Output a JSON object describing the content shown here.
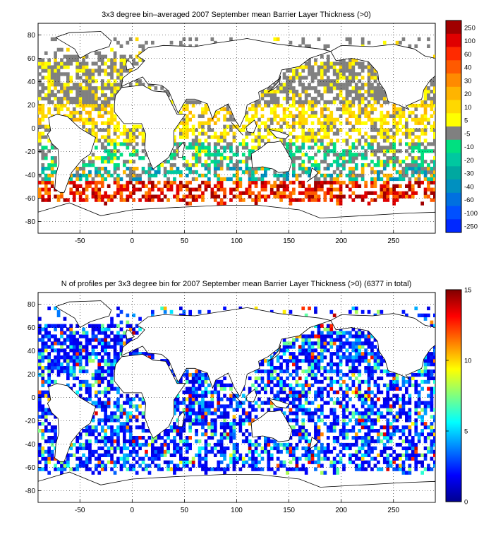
{
  "panel1": {
    "title": "3x3 degree bin–averaged 2007 September mean Barrier Layer Thickness (>0)",
    "x_ticks": [
      "-50",
      "0",
      "50",
      "100",
      "150",
      "200",
      "250"
    ],
    "y_ticks": [
      "80",
      "60",
      "40",
      "20",
      "0",
      "-20",
      "-40",
      "-60",
      "-80"
    ],
    "colorbar_labels": [
      "250",
      "100",
      "60",
      "40",
      "30",
      "20",
      "10",
      "5",
      "-5",
      "-10",
      "-20",
      "-30",
      "-40",
      "-60",
      "-100",
      "-250"
    ],
    "colorbar_colors": [
      "#a00000",
      "#e00000",
      "#ff2a00",
      "#ff5a00",
      "#ff8a00",
      "#ffb400",
      "#ffd800",
      "#ffff00",
      "#808080",
      "#00e080",
      "#00c8a0",
      "#00a8a0",
      "#0090c0",
      "#0070e0",
      "#0050ff",
      "#0028ff"
    ]
  },
  "panel2": {
    "title": "N of profiles per 3x3 degree bin for 2007 September mean Barrier Layer Thickness (>0) (6377 in total)",
    "x_ticks": [
      "-50",
      "0",
      "50",
      "100",
      "150",
      "200",
      "250"
    ],
    "y_ticks": [
      "80",
      "60",
      "40",
      "20",
      "0",
      "-20",
      "-40",
      "-60",
      "-80"
    ],
    "colorbar_labels": [
      "15",
      "10",
      "5",
      "0"
    ]
  },
  "chart_data": [
    {
      "type": "heatmap",
      "title": "3x3 degree bin–averaged 2007 September mean Barrier Layer Thickness (>0)",
      "xlim": [
        -90,
        290
      ],
      "ylim": [
        -90,
        90
      ],
      "grid": true,
      "bin_size_deg": 3,
      "colorbar_levels": [
        250,
        100,
        60,
        40,
        30,
        20,
        10,
        5,
        -5,
        -10,
        -20,
        -30,
        -40,
        -60,
        -100,
        -250
      ]
    },
    {
      "type": "heatmap",
      "title": "N of profiles per 3x3 degree bin for 2007 September mean Barrier Layer Thickness (>0) (6377 in total)",
      "total_profiles": 6377,
      "xlim": [
        -90,
        290
      ],
      "ylim": [
        -90,
        90
      ],
      "grid": true,
      "bin_size_deg": 3,
      "colorbar_range": [
        0,
        15
      ]
    }
  ]
}
